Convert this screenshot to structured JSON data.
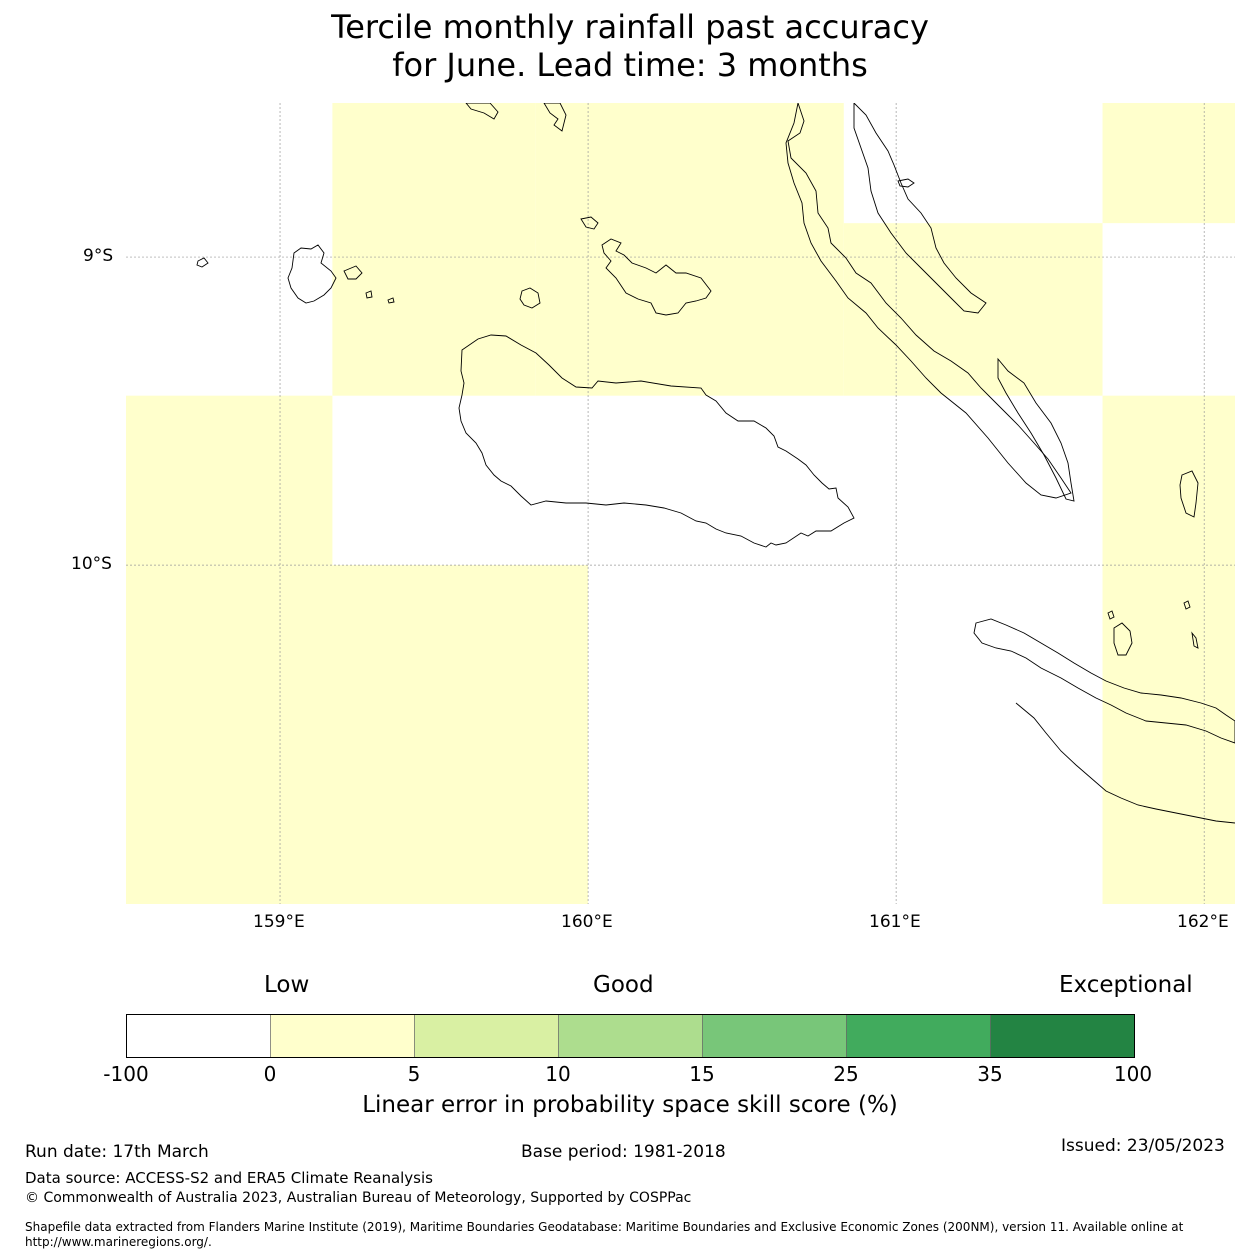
{
  "title": {
    "line1": "Tercile monthly rainfall past accuracy",
    "line2": "for June. Lead time: 3 months"
  },
  "map": {
    "lat_labels": [
      "9°S",
      "10°S"
    ],
    "lon_labels": [
      "159°E",
      "160°E",
      "161°E",
      "162°E"
    ],
    "extent": {
      "lon_min": 158.5,
      "lon_max": 162.1,
      "lat_min": -11.1,
      "lat_max": -8.5
    },
    "cell_colors": {
      "low": "#ffffcc",
      "none": "#ffffff"
    },
    "cells": [
      {
        "lon": [
          159.17,
          159.83
        ],
        "lat": [
          -9.45,
          -8.5
        ],
        "class": "low"
      },
      {
        "lon": [
          159.83,
          160.83
        ],
        "lat": [
          -9.45,
          -8.5
        ],
        "class": "low"
      },
      {
        "lon": [
          160.83,
          161.67
        ],
        "lat": [
          -9.45,
          -8.89
        ],
        "class": "low"
      },
      {
        "lon": [
          161.67,
          162.1
        ],
        "lat": [
          -8.89,
          -8.5
        ],
        "class": "low"
      },
      {
        "lon": [
          158.5,
          159.17
        ],
        "lat": [
          -10.0,
          -9.45
        ],
        "class": "low"
      },
      {
        "lon": [
          158.5,
          160.0
        ],
        "lat": [
          -11.1,
          -10.0
        ],
        "class": "low"
      },
      {
        "lon": [
          161.67,
          162.1
        ],
        "lat": [
          -11.1,
          -9.45
        ],
        "class": "low"
      }
    ]
  },
  "colorbar": {
    "category_labels": [
      "Low",
      "Good",
      "Exceptional"
    ],
    "ticks": [
      "-100",
      "0",
      "5",
      "10",
      "15",
      "25",
      "35",
      "100"
    ],
    "colors": [
      "#ffffff",
      "#ffffcc",
      "#d9f0a3",
      "#addd8e",
      "#78c679",
      "#41ab5d",
      "#238443"
    ],
    "label": "Linear error in probability space skill score (%)"
  },
  "footer": {
    "run_date": "Run date: 17th March",
    "base_period": "Base period: 1981-2018",
    "issued": "Issued: 23/05/2023",
    "data_source": "Data source: ACCESS-S2 and ERA5 Climate Reanalysis",
    "copyright": "© Commonwealth of Australia 2023, Australian Bureau of Meteorology, Supported by COSPPac",
    "shapefile": "Shapefile data extracted from Flanders Marine Institute (2019), Maritime Boundaries Geodatabase: Maritime Boundaries and Exclusive Economic Zones (200NM), version 11. Available online at http://www.marineregions.org/."
  }
}
